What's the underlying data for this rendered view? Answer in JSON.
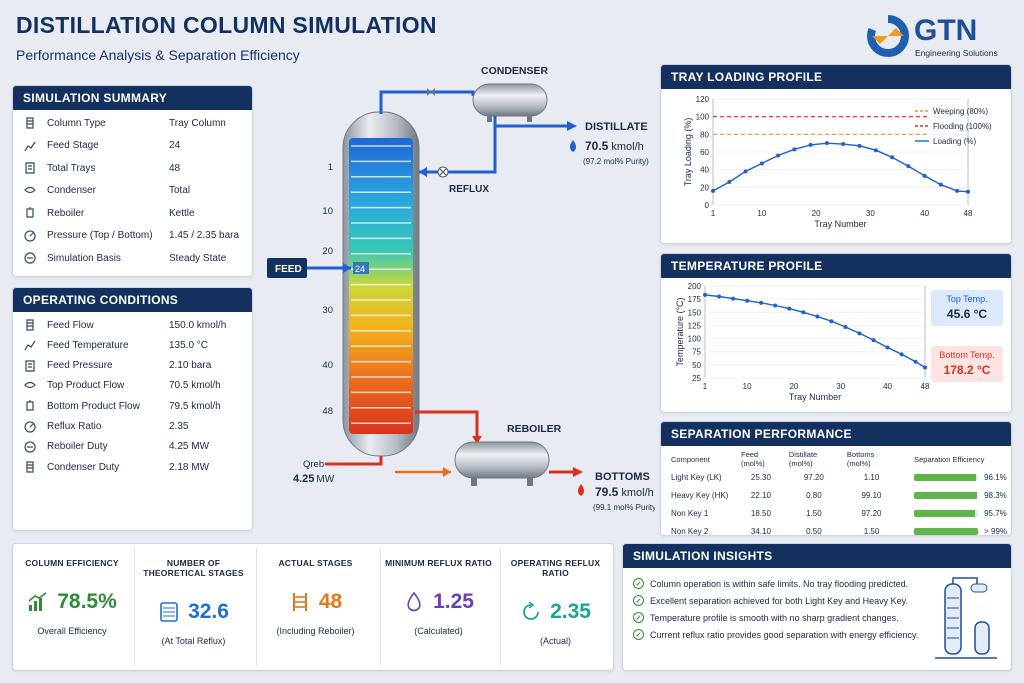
{
  "header": {
    "title": "DISTILLATION COLUMN SIMULATION",
    "subtitle": "Performance Analysis & Separation Efficiency",
    "logo_text": "GTN",
    "logo_sub": "Engineering Solutions"
  },
  "summary": {
    "title": "SIMULATION SUMMARY",
    "rows": [
      {
        "label": "Column Type",
        "value": "Tray Column"
      },
      {
        "label": "Feed Stage",
        "value": "24"
      },
      {
        "label": "Total Trays",
        "value": "48"
      },
      {
        "label": "Condenser",
        "value": "Total"
      },
      {
        "label": "Reboiler",
        "value": "Kettle"
      },
      {
        "label": "Pressure (Top / Bottom)",
        "value": "1.45 / 2.35 bara"
      },
      {
        "label": "Simulation Basis",
        "value": "Steady State"
      }
    ]
  },
  "operating": {
    "title": "OPERATING CONDITIONS",
    "rows": [
      {
        "label": "Feed Flow",
        "value": "150.0 kmol/h"
      },
      {
        "label": "Feed Temperature",
        "value": "135.0 °C"
      },
      {
        "label": "Feed Pressure",
        "value": "2.10 bara"
      },
      {
        "label": "Top Product Flow",
        "value": "70.5 kmol/h"
      },
      {
        "label": "Bottom Product Flow",
        "value": "79.5 kmol/h"
      },
      {
        "label": "Reflux Ratio",
        "value": "2.35"
      },
      {
        "label": "Reboiler Duty",
        "value": "4.25 MW"
      },
      {
        "label": "Condenser Duty",
        "value": "2.18 MW"
      }
    ]
  },
  "diagram": {
    "condenser": "CONDENSER",
    "reboiler": "REBOILER",
    "reflux": "REFLUX",
    "distillate": "DISTILLATE",
    "distillate_flow": "70.5",
    "distillate_unit": "kmol/h",
    "distillate_purity": "(97.2 mol% Purity)",
    "bottoms": "BOTTOMS",
    "bottoms_flow": "79.5",
    "bottoms_unit": "kmol/h",
    "bottoms_purity": "(99.1 mol% Purity)",
    "feed": "FEED",
    "feed_stage": "24",
    "qreb_label": "Qreb",
    "qreb_value": "4.25",
    "qreb_unit": "MW",
    "stage_labels": [
      "1",
      "10",
      "20",
      "30",
      "40",
      "48"
    ]
  },
  "tray_chart": {
    "title": "TRAY LOADING PROFILE",
    "chart_data": {
      "type": "line",
      "xlabel": "Tray Number",
      "ylabel": "Tray Loading (%)",
      "xlim": [
        1,
        48
      ],
      "ylim": [
        0,
        120
      ],
      "xticks": [
        "1",
        "10",
        "20",
        "30",
        "40",
        "48"
      ],
      "yticks": [
        "0",
        "20",
        "40",
        "60",
        "80",
        "100",
        "120"
      ],
      "legend": [
        "Weeping (80%)",
        "Flooding (100%)",
        "Loading (%)"
      ],
      "weeping": 80,
      "flooding": 100,
      "x": [
        1,
        4,
        7,
        10,
        13,
        16,
        19,
        22,
        25,
        28,
        31,
        34,
        37,
        40,
        43,
        46,
        48
      ],
      "y": [
        16,
        26,
        38,
        47,
        56,
        63,
        68,
        70,
        69,
        67,
        62,
        54,
        44,
        33,
        23,
        16,
        15
      ]
    }
  },
  "temp_chart": {
    "title": "TEMPERATURE PROFILE",
    "top_label": "Top Temp.",
    "top_value": "45.6 °C",
    "bottom_label": "Bottom Temp.",
    "bottom_value": "178.2 °C",
    "chart_data": {
      "type": "line",
      "xlabel": "Tray Number",
      "ylabel": "Temperature (°C)",
      "xlim": [
        1,
        48
      ],
      "ylim": [
        25,
        200
      ],
      "xticks": [
        "1",
        "10",
        "20",
        "30",
        "40",
        "48"
      ],
      "yticks": [
        "25",
        "50",
        "75",
        "100",
        "125",
        "150",
        "175",
        "200"
      ],
      "x": [
        1,
        4,
        7,
        10,
        13,
        16,
        19,
        22,
        25,
        28,
        31,
        34,
        37,
        40,
        43,
        46,
        48
      ],
      "y": [
        183,
        180,
        176,
        172,
        168,
        163,
        157,
        150,
        142,
        133,
        122,
        110,
        97,
        83,
        70,
        56,
        45
      ]
    }
  },
  "separation": {
    "title": "SEPARATION PERFORMANCE",
    "headers": [
      "Component",
      "Feed (mol%)",
      "Distillate (mol%)",
      "Bottoms (mol%)",
      "Separation Efficiency"
    ],
    "rows": [
      {
        "name": "Light Key (LK)",
        "feed": "25.30",
        "dist": "97.20",
        "bott": "1.10",
        "eff": "96.1%",
        "pct": 96.1
      },
      {
        "name": "Heavy Key (HK)",
        "feed": "22.10",
        "dist": "0.80",
        "bott": "99.10",
        "eff": "98.3%",
        "pct": 98.3
      },
      {
        "name": "Non Key 1",
        "feed": "18.50",
        "dist": "1.50",
        "bott": "97.20",
        "eff": "95.7%",
        "pct": 95.7
      },
      {
        "name": "Non Key 2",
        "feed": "34.10",
        "dist": "0.50",
        "bott": "1.50",
        "eff": "> 99%",
        "pct": 99.5
      }
    ]
  },
  "kpis": [
    {
      "title": "COLUMN EFFICIENCY",
      "value": "78.5%",
      "sub": "Overall Efficiency",
      "color": "#2e8b3a"
    },
    {
      "title": "NUMBER OF THEORETICAL STAGES",
      "value": "32.6",
      "sub": "(At Total Reflux)",
      "color": "#1f6fd1"
    },
    {
      "title": "ACTUAL STAGES",
      "value": "48",
      "sub": "(Including Reboiler)",
      "color": "#e07a1f"
    },
    {
      "title": "MINIMUM REFLUX RATIO",
      "value": "1.25",
      "sub": "(Calculated)",
      "color": "#6a3fb5"
    },
    {
      "title": "OPERATING REFLUX RATIO",
      "value": "2.35",
      "sub": "(Actual)",
      "color": "#1aa39a"
    }
  ],
  "insights": {
    "title": "SIMULATION INSIGHTS",
    "items": [
      "Column operation is within safe limits. No tray flooding predicted.",
      "Excellent separation achieved for both Light Key and Heavy Key.",
      "Temperature profile is smooth with no sharp gradient changes.",
      "Current reflux ratio provides good separation with energy efficiency."
    ]
  }
}
